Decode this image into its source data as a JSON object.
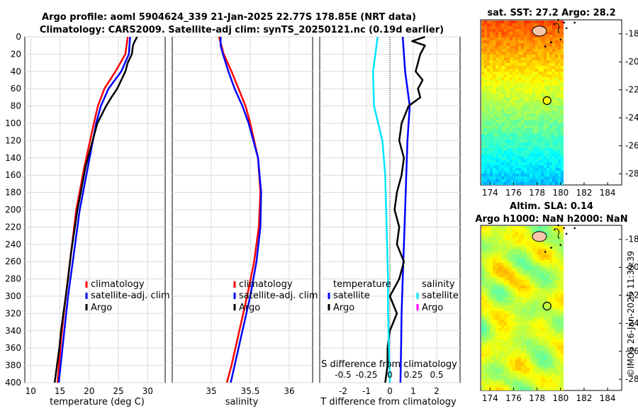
{
  "header": {
    "title_line1": "Argo profile: aoml 5904624_339 21-Jan-2025 22.77S 178.85E (NRT data)",
    "title_line2": "Climatology: CARS2009. Satellite-adj clim: synTS_20250121.nc (0.19d earlier)"
  },
  "credit": "©IMOS 26-Jan-2025 11:39:39",
  "colors": {
    "argo": "#000000",
    "climatology": "#ff0000",
    "satellite": "#0000ff",
    "salinity_satellite": "#00e5ff",
    "salinity_argo": "#ff00ff"
  },
  "chart_data": [
    {
      "id": "temperature",
      "type": "line",
      "xlabel": "temperature (deg C)",
      "xlim": [
        9,
        33
      ],
      "xticks": [
        "10",
        "15",
        "20",
        "25",
        "30"
      ],
      "xtick_values": [
        10,
        15,
        20,
        25,
        30
      ],
      "ylim": [
        0,
        400
      ],
      "yticks": [
        "0",
        "20",
        "40",
        "60",
        "80",
        "100",
        "120",
        "140",
        "160",
        "180",
        "200",
        "220",
        "240",
        "260",
        "280",
        "300",
        "320",
        "340",
        "360",
        "380",
        "400"
      ],
      "ytick_values": [
        0,
        20,
        40,
        60,
        80,
        100,
        120,
        140,
        160,
        180,
        200,
        220,
        240,
        260,
        280,
        300,
        320,
        340,
        360,
        380,
        400
      ],
      "legend": [
        "climatology",
        "satellite-adj. clim",
        "Argo"
      ],
      "series": [
        {
          "name": "climatology",
          "depth": [
            0,
            20,
            40,
            60,
            80,
            100,
            150,
            200,
            250,
            300,
            350,
            400
          ],
          "values": [
            26.6,
            26.2,
            24.5,
            22.6,
            21.5,
            20.8,
            19.2,
            17.8,
            16.9,
            16.0,
            15.2,
            14.6
          ]
        },
        {
          "name": "satellite-adj. clim",
          "depth": [
            0,
            20,
            40,
            60,
            80,
            100,
            150,
            200,
            250,
            300,
            350,
            400
          ],
          "values": [
            27.0,
            26.8,
            25.5,
            23.3,
            22.0,
            21.2,
            19.8,
            18.4,
            17.4,
            16.4,
            15.6,
            14.8
          ]
        },
        {
          "name": "Argo",
          "depth": [
            0,
            5,
            10,
            20,
            30,
            40,
            50,
            60,
            70,
            80,
            100,
            150,
            200,
            250,
            280,
            300,
            320,
            340,
            360,
            380,
            400
          ],
          "values": [
            28.2,
            27.8,
            27.5,
            27.3,
            26.6,
            26.2,
            25.5,
            24.8,
            23.8,
            22.9,
            21.4,
            19.4,
            18.0,
            16.9,
            16.4,
            16.0,
            15.6,
            15.2,
            14.9,
            14.5,
            14.1
          ]
        }
      ]
    },
    {
      "id": "salinity",
      "type": "line",
      "xlabel": "salinity",
      "xlim": [
        34.5,
        36.3
      ],
      "xticks": [
        "35",
        "35.5",
        "36"
      ],
      "xtick_values": [
        35,
        35.5,
        36
      ],
      "ylim": [
        0,
        400
      ],
      "legend": [
        "climatology",
        "satellite-adj. clim",
        "Argo"
      ],
      "series": [
        {
          "name": "climatology",
          "depth": [
            0,
            10,
            20,
            40,
            60,
            80,
            100,
            140,
            180,
            220,
            260,
            300,
            340,
            380,
            400
          ],
          "values": [
            35.1,
            35.13,
            35.16,
            35.26,
            35.35,
            35.44,
            35.5,
            35.6,
            35.63,
            35.61,
            35.55,
            35.46,
            35.36,
            35.26,
            35.2
          ]
        },
        {
          "name": "satellite-adj. clim",
          "depth": [
            0,
            10,
            20,
            40,
            60,
            80,
            100,
            140,
            180,
            220,
            260,
            300,
            340,
            380,
            400
          ],
          "values": [
            35.12,
            35.12,
            35.15,
            35.22,
            35.3,
            35.4,
            35.48,
            35.6,
            35.64,
            35.63,
            35.58,
            35.5,
            35.4,
            35.3,
            35.25
          ]
        }
      ]
    },
    {
      "id": "difference",
      "type": "line",
      "xlabel": "T difference from climatology",
      "xlabel_top": "S difference from climatology",
      "xlim": [
        -3,
        3
      ],
      "xticks": [
        "-2",
        "-1",
        "0",
        "1",
        "2"
      ],
      "xtick_values": [
        -2,
        -1,
        0,
        1,
        2
      ],
      "s_ticks": [
        "-0.5",
        "-0.25",
        "0",
        "0.25",
        "0.5"
      ],
      "legend_temperature_title": "temperature",
      "legend_salinity_title": "salinity",
      "legend_temperature": [
        "satellite",
        "Argo"
      ],
      "legend_salinity": [
        "satellite",
        "Argo"
      ],
      "series": [
        {
          "name": "T satellite",
          "depth": [
            0,
            40,
            80,
            120,
            160,
            200,
            240,
            280,
            320,
            360,
            400
          ],
          "values": [
            0.55,
            0.65,
            0.85,
            0.75,
            0.7,
            0.65,
            0.6,
            0.55,
            0.5,
            0.48,
            0.45
          ]
        },
        {
          "name": "T Argo",
          "depth": [
            0,
            5,
            10,
            20,
            30,
            40,
            50,
            60,
            70,
            80,
            100,
            120,
            140,
            160,
            180,
            200,
            220,
            240,
            260,
            280,
            300,
            320,
            340,
            360,
            380,
            400
          ],
          "values": [
            1.5,
            0.95,
            1.5,
            1.3,
            1.2,
            1.1,
            1.4,
            1.2,
            1.3,
            0.8,
            0.5,
            0.4,
            0.6,
            0.5,
            0.3,
            0.2,
            0.4,
            0.3,
            0.6,
            0.4,
            0.0,
            0.3,
            0.0,
            -0.1,
            -0.1,
            -0.2
          ]
        },
        {
          "name": "S satellite",
          "depth": [
            0,
            40,
            80,
            120,
            160,
            200,
            240,
            280,
            320,
            360,
            400
          ],
          "values": [
            -0.13,
            -0.18,
            -0.17,
            -0.08,
            -0.05,
            -0.04,
            -0.03,
            -0.02,
            -0.02,
            -0.01,
            0.0
          ]
        }
      ]
    }
  ],
  "maps": [
    {
      "id": "sst",
      "title": "sat. SST: 27.2 Argo: 28.2",
      "xticks": [
        "174",
        "176",
        "178",
        "180",
        "182",
        "184"
      ],
      "yticks": [
        "-18",
        "-20",
        "-22",
        "-24",
        "-26",
        "-28"
      ],
      "marker": {
        "lon": 178.85,
        "lat": -22.77
      }
    },
    {
      "id": "sla",
      "title_line1": "Altim. SLA: 0.14",
      "title_line2": "Argo h1000: NaN h2000: NaN",
      "xticks": [
        "174",
        "176",
        "178",
        "180",
        "182",
        "184"
      ],
      "yticks": [
        "-18",
        "-20",
        "-22",
        "-24",
        "-26",
        "-28"
      ],
      "marker": {
        "lon": 178.85,
        "lat": -22.77
      }
    }
  ]
}
